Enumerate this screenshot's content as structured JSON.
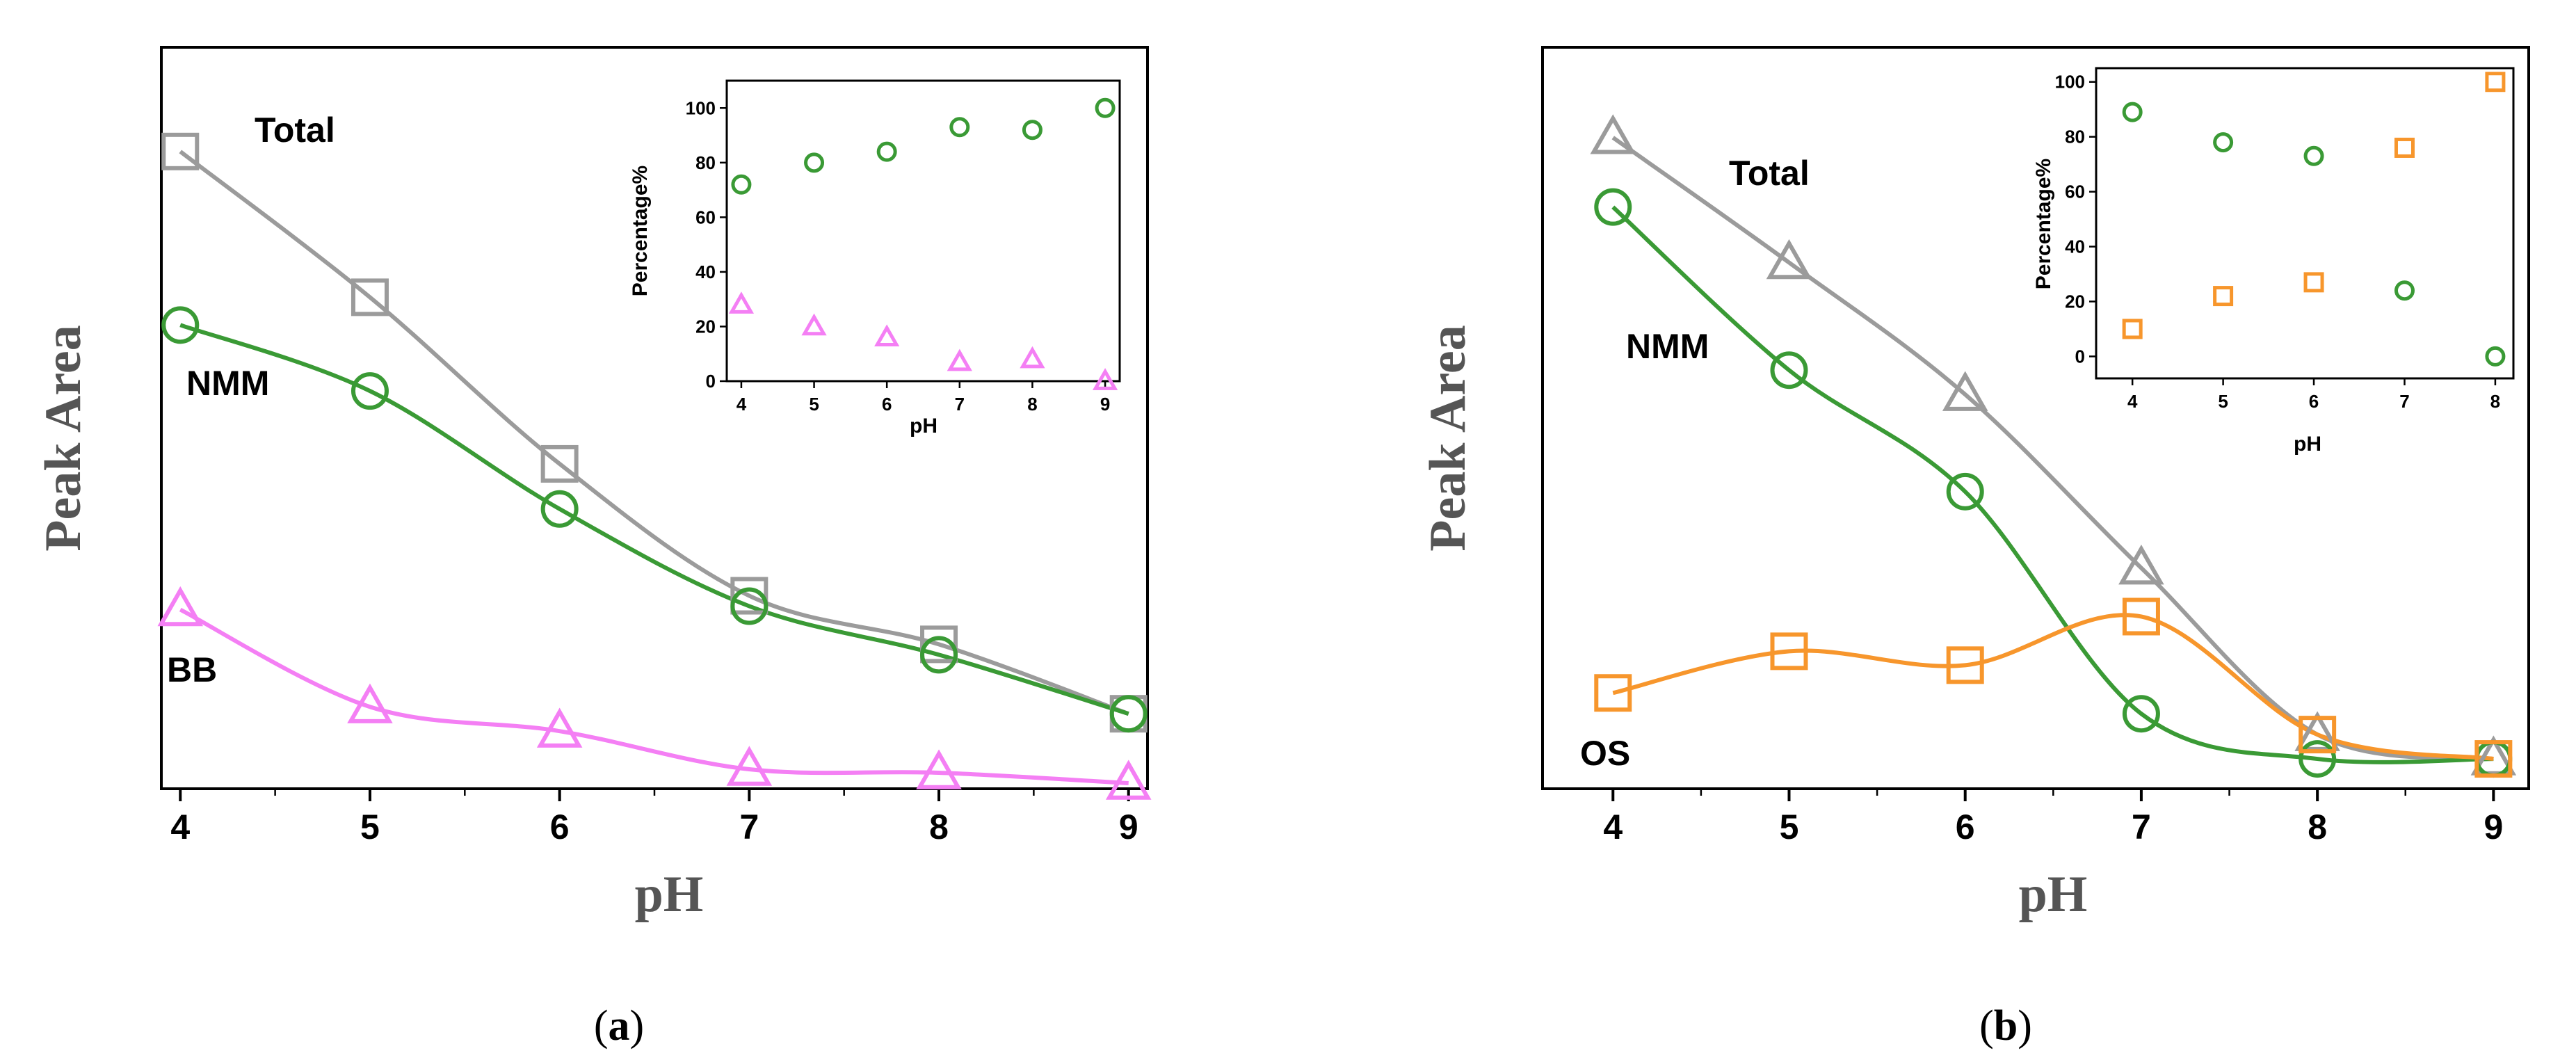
{
  "colors": {
    "total": "#9b9b9b",
    "nmm": "#3a9a35",
    "bb": "#f47ff4",
    "os": "#f7962c"
  },
  "chart_data": [
    {
      "panel": "a",
      "type": "line",
      "caption": {
        "open": "(",
        "letter": "a",
        "close": ")"
      },
      "xlabel": "pH",
      "ylabel": "Peak Area",
      "x": [
        4,
        5,
        6,
        7,
        8,
        9
      ],
      "xlim": [
        3.9,
        9.1
      ],
      "ylim": [
        0,
        100
      ],
      "series": [
        {
          "name": "Total",
          "label": "Total",
          "marker": "square",
          "color": "#9b9b9b",
          "values": [
            91,
            70,
            46,
            27,
            20,
            10
          ]
        },
        {
          "name": "NMM",
          "label": "NMM",
          "marker": "circle",
          "color": "#3a9a35",
          "values": [
            66,
            56.5,
            39.5,
            25.5,
            18.5,
            10
          ]
        },
        {
          "name": "BB",
          "label": "BB",
          "marker": "triangle",
          "color": "#f47ff4",
          "values": [
            25,
            11,
            7.5,
            2,
            1.5,
            0
          ]
        }
      ],
      "inset": {
        "type": "scatter",
        "xlabel": "pH",
        "ylabel": "Percentage%",
        "x": [
          4,
          5,
          6,
          7,
          8,
          9
        ],
        "xlim": [
          3.8,
          9.2
        ],
        "ylim": [
          0,
          110
        ],
        "xticks": [
          "4",
          "5",
          "6",
          "7",
          "8",
          "9"
        ],
        "yticks": [
          "0",
          "20",
          "40",
          "60",
          "80",
          "100"
        ],
        "series": [
          {
            "name": "NMM",
            "marker": "circle",
            "color": "#3a9a35",
            "values": [
              72,
              80,
              84,
              93,
              92,
              100
            ]
          },
          {
            "name": "BB",
            "marker": "triangle",
            "color": "#f47ff4",
            "values": [
              28,
              20,
              16,
              7,
              8,
              0
            ]
          }
        ]
      }
    },
    {
      "panel": "b",
      "type": "line",
      "caption": {
        "open": "(",
        "letter": "b",
        "close": ")"
      },
      "xlabel": "pH",
      "ylabel": "Peak Area",
      "x": [
        4,
        5,
        6,
        7,
        8,
        9
      ],
      "xlim": [
        3.6,
        9.2
      ],
      "ylim": [
        0,
        100
      ],
      "series": [
        {
          "name": "Total",
          "label": "Total",
          "marker": "triangle",
          "color": "#9b9b9b",
          "values": [
            93,
            75,
            56,
            31,
            7,
            3.5
          ]
        },
        {
          "name": "NMM",
          "label": "NMM",
          "marker": "circle",
          "color": "#3a9a35",
          "values": [
            83,
            59.5,
            42,
            10,
            3.5,
            3.5
          ]
        },
        {
          "name": "OS",
          "label": "OS",
          "marker": "square",
          "color": "#f7962c",
          "values": [
            13,
            19,
            17,
            24,
            7,
            3.5
          ]
        }
      ],
      "inset": {
        "type": "scatter",
        "xlabel": "pH",
        "ylabel": "Percentage%",
        "x": [
          4,
          5,
          6,
          7,
          8
        ],
        "xlim": [
          3.6,
          8.2
        ],
        "ylim": [
          -8,
          105
        ],
        "xticks": [
          "4",
          "5",
          "6",
          "7",
          "8"
        ],
        "yticks": [
          "0",
          "20",
          "40",
          "60",
          "80",
          "100"
        ],
        "series": [
          {
            "name": "NMM",
            "marker": "circle",
            "color": "#3a9a35",
            "values": [
              89,
              78,
              73,
              24,
              0
            ]
          },
          {
            "name": "OS",
            "marker": "square",
            "color": "#f7962c",
            "values": [
              10,
              22,
              27,
              76,
              100
            ]
          }
        ]
      }
    }
  ]
}
